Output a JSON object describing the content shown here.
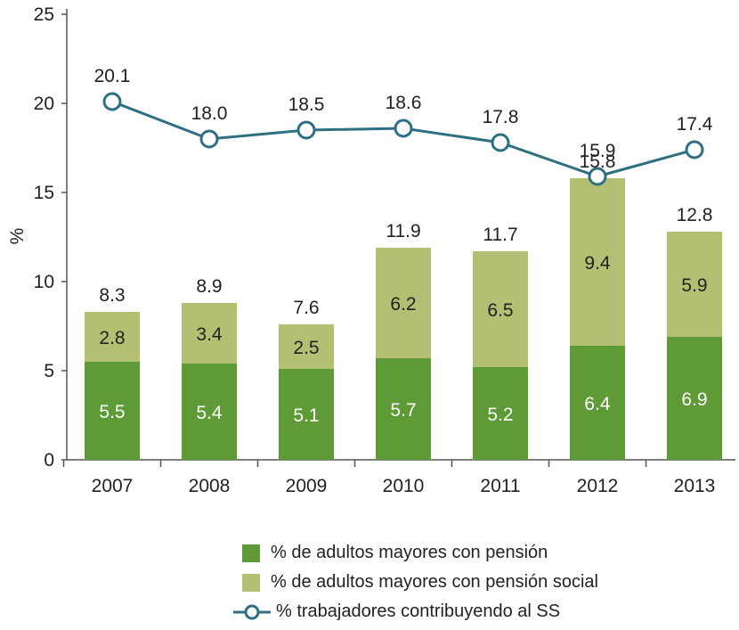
{
  "chart_data": {
    "type": "bar",
    "ylabel": "%",
    "ylim": [
      0,
      25
    ],
    "yticks": [
      "0",
      "5",
      "10",
      "15",
      "20",
      "25"
    ],
    "categories": [
      "2007",
      "2008",
      "2009",
      "2010",
      "2011",
      "2012",
      "2013"
    ],
    "series": [
      {
        "name": "% de adultos mayores con pensión",
        "type": "bar",
        "color": "#5e9a35",
        "values": [
          5.5,
          5.4,
          5.1,
          5.7,
          5.2,
          6.4,
          6.9
        ],
        "labels": [
          "5.5",
          "5.4",
          "5.1",
          "5.7",
          "5.2",
          "6.4",
          "6.9"
        ]
      },
      {
        "name": "% de adultos mayores con pensión social",
        "type": "bar",
        "color": "#b3bf72",
        "values": [
          2.8,
          3.4,
          2.5,
          6.2,
          6.5,
          9.4,
          5.9
        ],
        "labels": [
          "2.8",
          "3.4",
          "2.5",
          "6.2",
          "6.5",
          "9.4",
          "5.9"
        ]
      },
      {
        "name": "% trabajadores contribuyendo al SS",
        "type": "line",
        "color": "#2e6f84",
        "values": [
          20.1,
          18.0,
          18.5,
          18.6,
          17.8,
          15.9,
          17.4
        ],
        "labels": [
          "20.1",
          "18.0",
          "18.5",
          "18.6",
          "17.8",
          "15.9",
          "17.4"
        ]
      }
    ],
    "totals": [
      8.3,
      8.9,
      7.6,
      11.9,
      11.7,
      15.8,
      12.8
    ],
    "total_labels": [
      "8.3",
      "8.9",
      "7.6",
      "11.9",
      "11.7",
      "15.8",
      "12.8"
    ],
    "legend_position": "bottom",
    "grid": false
  }
}
